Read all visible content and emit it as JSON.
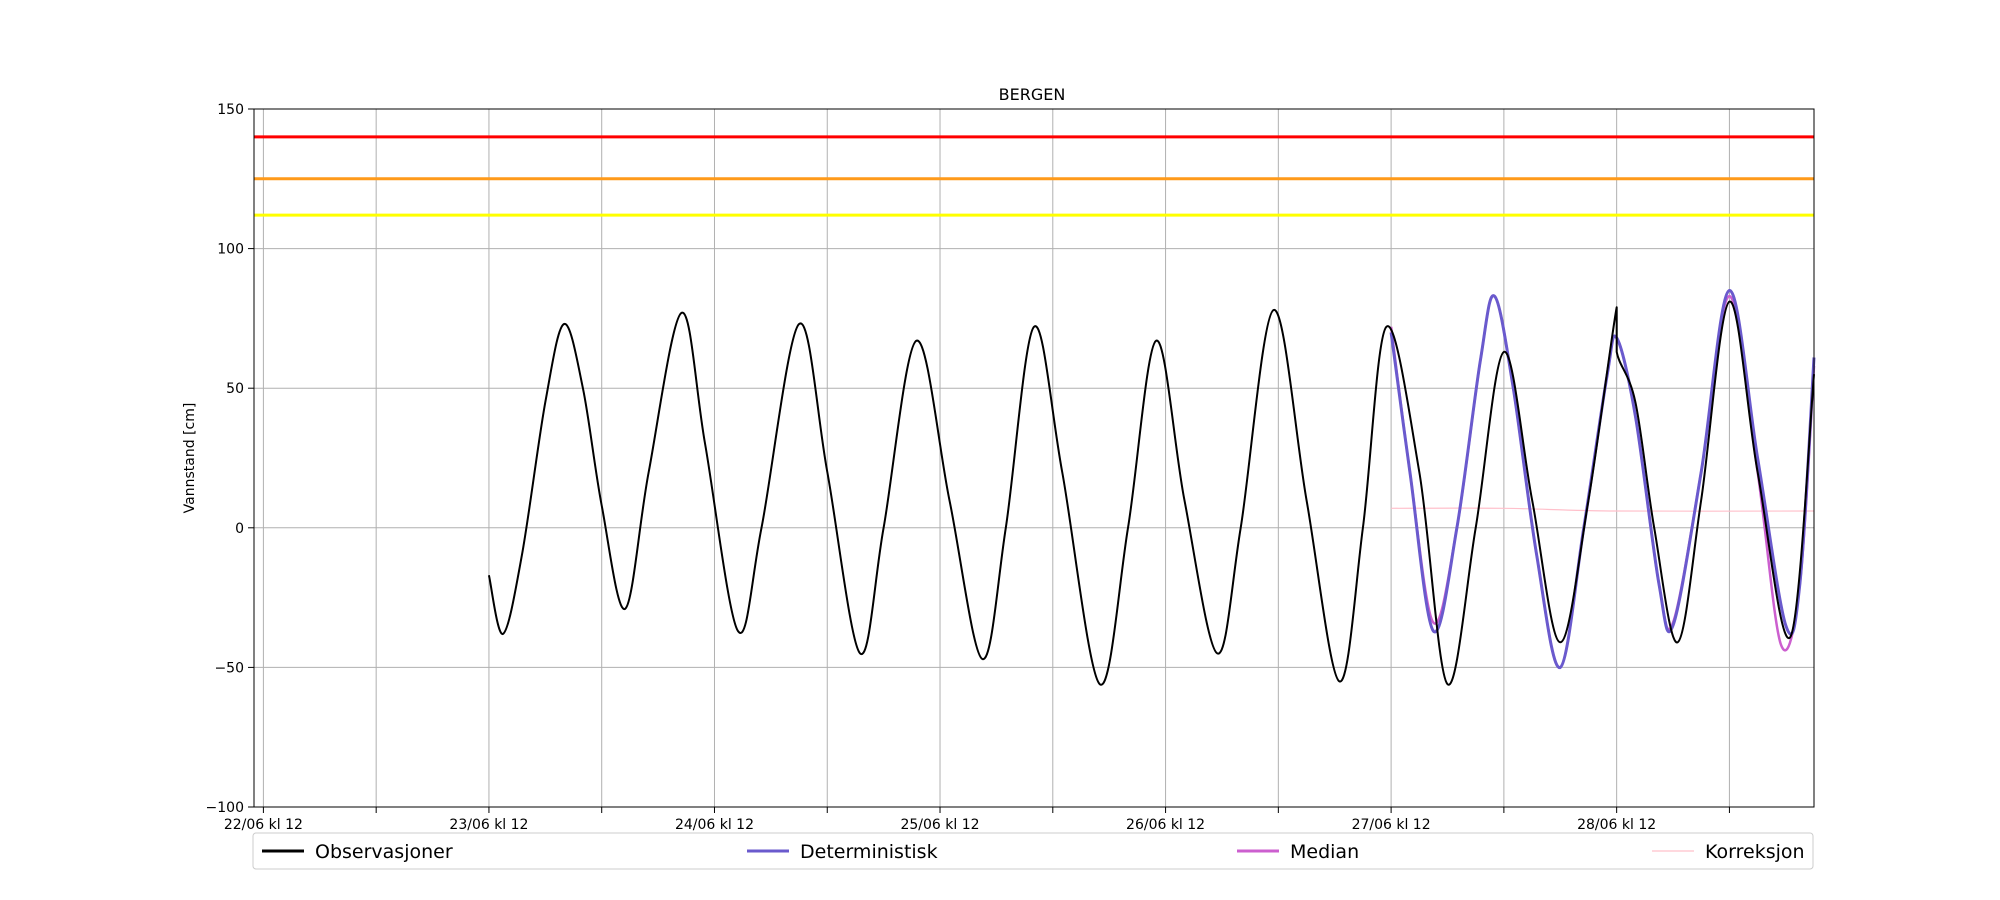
{
  "chart_data": {
    "type": "line",
    "title": "BERGEN",
    "xlabel": "",
    "ylabel": "Vannstand [cm]",
    "ylim": [
      -100,
      150
    ],
    "xlim": [
      "2024-06-22T11:00",
      "2024-06-29T09:00"
    ],
    "yticks": [
      -100,
      -50,
      0,
      50,
      100,
      150
    ],
    "xticks": [
      {
        "t": "2024-06-22T12:00",
        "label": "22/06 kl 12"
      },
      {
        "t": "2024-06-23T00:00",
        "label": ""
      },
      {
        "t": "2024-06-23T12:00",
        "label": "23/06 kl 12"
      },
      {
        "t": "2024-06-24T00:00",
        "label": ""
      },
      {
        "t": "2024-06-24T12:00",
        "label": "24/06 kl 12"
      },
      {
        "t": "2024-06-25T00:00",
        "label": ""
      },
      {
        "t": "2024-06-25T12:00",
        "label": "25/06 kl 12"
      },
      {
        "t": "2024-06-26T00:00",
        "label": ""
      },
      {
        "t": "2024-06-26T12:00",
        "label": "26/06 kl 12"
      },
      {
        "t": "2024-06-27T00:00",
        "label": ""
      },
      {
        "t": "2024-06-27T12:00",
        "label": "27/06 kl 12"
      },
      {
        "t": "2024-06-28T00:00",
        "label": ""
      },
      {
        "t": "2024-06-28T12:00",
        "label": "28/06 kl 12"
      },
      {
        "t": "2024-06-29T00:00",
        "label": ""
      }
    ],
    "grid": true,
    "legend_position": "bottom",
    "thresholds": [
      {
        "value": 140,
        "color": "#ff0000"
      },
      {
        "value": 125,
        "color": "#ff9a1a"
      },
      {
        "value": 112,
        "color": "#ffff00"
      }
    ],
    "series": [
      {
        "name": "Observasjoner",
        "color": "#000000",
        "points": [
          [
            "2024-06-23T12:00",
            -17
          ],
          [
            "2024-06-23T13:30",
            -38
          ],
          [
            "2024-06-23T15:30",
            -10
          ],
          [
            "2024-06-23T18:00",
            45
          ],
          [
            "2024-06-23T20:00",
            73
          ],
          [
            "2024-06-23T22:00",
            50
          ],
          [
            "2024-06-24T00:00",
            8
          ],
          [
            "2024-06-24T02:30",
            -29
          ],
          [
            "2024-06-24T05:00",
            20
          ],
          [
            "2024-06-24T08:30",
            77
          ],
          [
            "2024-06-24T11:00",
            30
          ],
          [
            "2024-06-24T14:30",
            -37
          ],
          [
            "2024-06-24T17:00",
            0
          ],
          [
            "2024-06-24T21:00",
            73
          ],
          [
            "2024-06-25T00:00",
            20
          ],
          [
            "2024-06-25T03:30",
            -45
          ],
          [
            "2024-06-25T06:00",
            0
          ],
          [
            "2024-06-25T09:30",
            67
          ],
          [
            "2024-06-25T13:00",
            10
          ],
          [
            "2024-06-25T16:30",
            -47
          ],
          [
            "2024-06-25T19:00",
            0
          ],
          [
            "2024-06-25T22:00",
            72
          ],
          [
            "2024-06-26T01:00",
            20
          ],
          [
            "2024-06-26T05:00",
            -56
          ],
          [
            "2024-06-26T08:00",
            0
          ],
          [
            "2024-06-26T11:00",
            67
          ],
          [
            "2024-06-26T14:00",
            10
          ],
          [
            "2024-06-26T17:30",
            -45
          ],
          [
            "2024-06-26T20:00",
            0
          ],
          [
            "2024-06-26T23:30",
            78
          ],
          [
            "2024-06-27T03:00",
            10
          ],
          [
            "2024-06-27T06:30",
            -55
          ],
          [
            "2024-06-27T09:00",
            0
          ],
          [
            "2024-06-27T11:30",
            72
          ],
          [
            "2024-06-27T15:00",
            20
          ],
          [
            "2024-06-27T18:00",
            -56
          ],
          [
            "2024-06-27T21:00",
            0
          ],
          [
            "2024-06-28T00:00",
            63
          ],
          [
            "2024-06-28T03:00",
            10
          ],
          [
            "2024-06-28T06:00",
            -41
          ],
          [
            "2024-06-28T09:00",
            10
          ],
          [
            "2024-06-28T12:00",
            79
          ],
          [
            "2024-06-28T12:00",
            63
          ],
          [
            "2024-06-28T14:00",
            45
          ],
          [
            "2024-06-28T16:00",
            0
          ],
          [
            "2024-06-28T18:30",
            -41
          ],
          [
            "2024-06-28T21:00",
            10
          ],
          [
            "2024-06-29T00:00",
            81
          ],
          [
            "2024-06-29T03:00",
            20
          ],
          [
            "2024-06-29T06:30",
            -39
          ],
          [
            "2024-06-29T09:00",
            55
          ]
        ]
      },
      {
        "name": "Deterministisk",
        "color": "#6a5acd",
        "points": [
          [
            "2024-06-27T12:00",
            70
          ],
          [
            "2024-06-27T14:00",
            20
          ],
          [
            "2024-06-27T16:30",
            -37
          ],
          [
            "2024-06-27T19:00",
            0
          ],
          [
            "2024-06-27T21:30",
            60
          ],
          [
            "2024-06-27T23:00",
            83
          ],
          [
            "2024-06-28T01:00",
            50
          ],
          [
            "2024-06-28T03:30",
            -10
          ],
          [
            "2024-06-28T06:00",
            -50
          ],
          [
            "2024-06-28T08:30",
            0
          ],
          [
            "2024-06-28T11:00",
            55
          ],
          [
            "2024-06-28T12:00",
            68
          ],
          [
            "2024-06-28T14:00",
            40
          ],
          [
            "2024-06-28T16:30",
            -20
          ],
          [
            "2024-06-28T18:00",
            -35
          ],
          [
            "2024-06-28T21:00",
            20
          ],
          [
            "2024-06-29T00:00",
            85
          ],
          [
            "2024-06-29T03:00",
            25
          ],
          [
            "2024-06-29T06:00",
            -35
          ],
          [
            "2024-06-29T07:30",
            -20
          ],
          [
            "2024-06-29T09:00",
            61
          ]
        ]
      },
      {
        "name": "Median",
        "color": "#cc5fcf",
        "points": [
          [
            "2024-06-27T12:00",
            72
          ],
          [
            "2024-06-27T14:00",
            20
          ],
          [
            "2024-06-27T16:30",
            -34
          ],
          [
            "2024-06-27T19:00",
            0
          ],
          [
            "2024-06-27T21:30",
            60
          ],
          [
            "2024-06-27T23:00",
            83
          ],
          [
            "2024-06-28T01:00",
            50
          ],
          [
            "2024-06-28T03:30",
            -10
          ],
          [
            "2024-06-28T06:00",
            -50
          ],
          [
            "2024-06-28T08:30",
            0
          ],
          [
            "2024-06-28T11:00",
            55
          ],
          [
            "2024-06-28T12:00",
            68
          ],
          [
            "2024-06-28T14:00",
            40
          ],
          [
            "2024-06-28T16:30",
            -20
          ],
          [
            "2024-06-28T18:00",
            -34
          ],
          [
            "2024-06-28T21:00",
            20
          ],
          [
            "2024-06-29T00:00",
            83
          ],
          [
            "2024-06-29T03:00",
            20
          ],
          [
            "2024-06-29T05:30",
            -42
          ],
          [
            "2024-06-29T07:30",
            -20
          ],
          [
            "2024-06-29T09:00",
            58
          ]
        ]
      },
      {
        "name": "Korreksjon",
        "color": "#ffc0cb",
        "points": [
          [
            "2024-06-27T12:00",
            7
          ],
          [
            "2024-06-28T00:00",
            7
          ],
          [
            "2024-06-28T12:00",
            6
          ],
          [
            "2024-06-29T09:00",
            6
          ]
        ]
      }
    ]
  }
}
